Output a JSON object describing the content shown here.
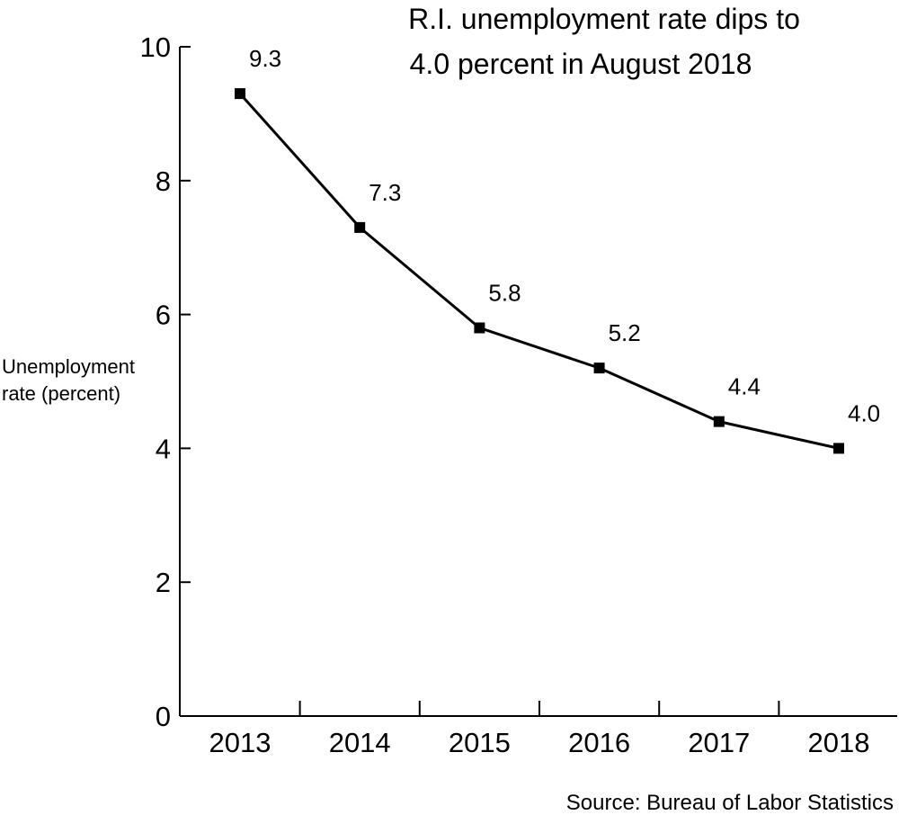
{
  "chart_data": {
    "type": "line",
    "title_lines": [
      "R.I. unemployment rate dips to",
      "4.0 percent in August 2018"
    ],
    "ylabel_lines": [
      "Unemployment",
      "rate (percent)"
    ],
    "xlabel": "",
    "categories": [
      "2013",
      "2014",
      "2015",
      "2016",
      "2017",
      "2018"
    ],
    "series": [
      {
        "name": "R.I. unemployment rate",
        "values": [
          9.3,
          7.3,
          5.8,
          5.2,
          4.4,
          4.0
        ],
        "data_labels": [
          "9.3",
          "7.3",
          "5.8",
          "5.2",
          "4.4",
          "4.0"
        ]
      }
    ],
    "ylim": [
      0,
      10
    ],
    "yticks": [
      0,
      2,
      4,
      6,
      8,
      10
    ],
    "ytick_labels": [
      "0",
      "2",
      "4",
      "6",
      "8",
      "10"
    ],
    "grid": false,
    "legend": "none",
    "source": "Source: Bureau of Labor Statistics",
    "line_color": "#000000",
    "marker": "square"
  }
}
